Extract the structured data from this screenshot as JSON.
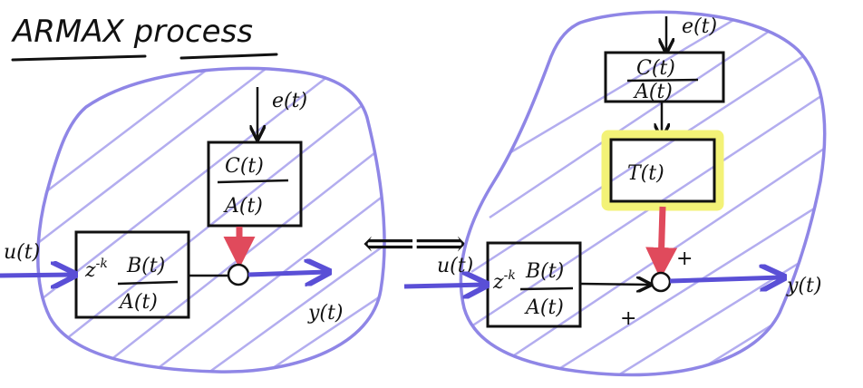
{
  "title": "ARMAX process",
  "colors": {
    "blob_stroke": "#8f86e6",
    "hatch": "#9a92ea",
    "ink": "#111111",
    "red_arrow": "#e04a5c",
    "highlight": "#f3f277",
    "input_arrow": "#5a4fd6"
  },
  "left": {
    "noise_label": "e(t)",
    "input_label": "u(t)",
    "output_label": "y(t)",
    "plant": {
      "delay": "z",
      "delay_exp": "-k",
      "num": "B(t)",
      "den": "A(t)"
    },
    "noise_filter": {
      "num": "C(t)",
      "den": "A(t)"
    }
  },
  "equiv_symbol": "⟸⟹",
  "right": {
    "noise_label": "e(t)",
    "input_label": "u(t)",
    "output_label": "y(t)",
    "plant": {
      "delay": "z",
      "delay_exp": "-k",
      "num": "B(t)",
      "den": "A(t)"
    },
    "noise_filter": {
      "num": "C(t)",
      "den": "A(t)"
    },
    "t_block": "T(t)",
    "sum_sign_top": "+",
    "sum_sign_bottom": "+"
  }
}
